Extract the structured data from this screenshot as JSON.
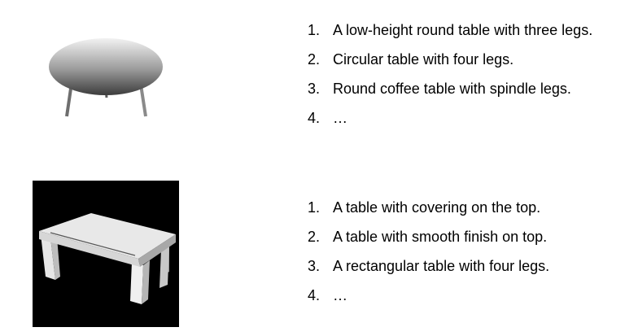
{
  "examples": [
    {
      "image_label": "round-table-render",
      "captions": [
        {
          "num": "1.",
          "text": "A low-height round table with three legs."
        },
        {
          "num": "2.",
          "text": "Circular table with four legs."
        },
        {
          "num": "3.",
          "text": "Round coffee table with spindle legs."
        },
        {
          "num": "4.",
          "text": "…"
        }
      ]
    },
    {
      "image_label": "rectangular-table-render",
      "captions": [
        {
          "num": "1.",
          "text": "A table with covering on the top."
        },
        {
          "num": "2.",
          "text": "A table with smooth finish on top."
        },
        {
          "num": "3.",
          "text": "A rectangular table with four legs."
        },
        {
          "num": "4.",
          "text": "…"
        }
      ]
    }
  ],
  "colors": {
    "background": "#ffffff",
    "text": "#000000",
    "render_bg": "#000000",
    "table_light": "#e8e8e8",
    "table_dark": "#404040"
  }
}
